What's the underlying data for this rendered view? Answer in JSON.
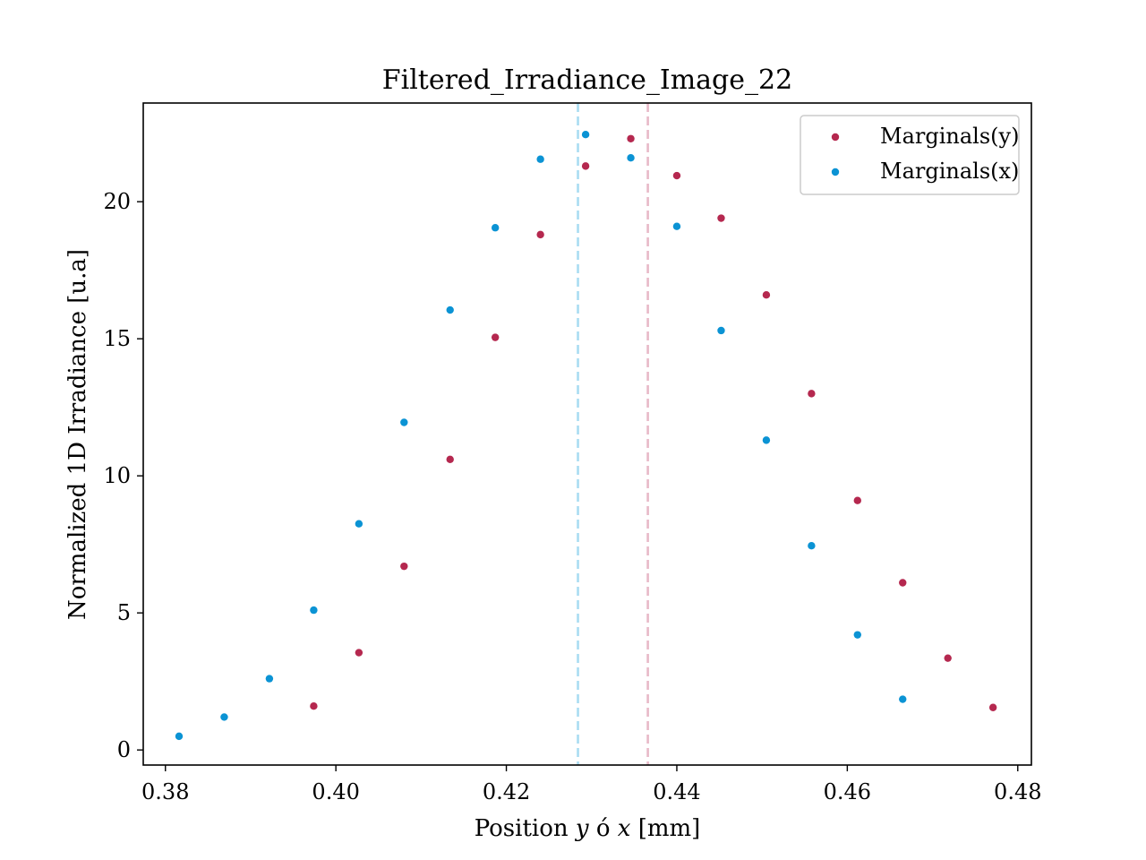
{
  "chart_data": {
    "type": "scatter",
    "title": "Filtered_Irradiance_Image_22",
    "xlabel_parts": [
      "Position ",
      "y",
      " ó ",
      "x",
      " [mm]"
    ],
    "ylabel": "Normalized 1D Irradiance [u.a]",
    "xlim": [
      0.3774,
      0.4816
    ],
    "ylim": [
      -0.55,
      23.6
    ],
    "xticks": [
      0.38,
      0.4,
      0.42,
      0.44,
      0.46,
      0.48
    ],
    "xtick_labels": [
      "0.38",
      "0.40",
      "0.42",
      "0.44",
      "0.46",
      "0.48"
    ],
    "yticks": [
      0,
      5,
      10,
      15,
      20
    ],
    "ytick_labels": [
      "0",
      "5",
      "10",
      "15",
      "20"
    ],
    "grid": false,
    "legend_position": "top-right",
    "series": [
      {
        "name": "Marginals(y)",
        "color": "#b5284f",
        "points": [
          [
            0.3974,
            1.6
          ],
          [
            0.4027,
            3.55
          ],
          [
            0.408,
            6.7
          ],
          [
            0.4134,
            10.6
          ],
          [
            0.4187,
            15.05
          ],
          [
            0.424,
            18.8
          ],
          [
            0.4293,
            21.3
          ],
          [
            0.4346,
            22.3
          ],
          [
            0.44,
            20.95
          ],
          [
            0.4452,
            19.4
          ],
          [
            0.4505,
            16.6
          ],
          [
            0.4558,
            13.0
          ],
          [
            0.4612,
            9.1
          ],
          [
            0.4665,
            6.1
          ],
          [
            0.4718,
            3.35
          ],
          [
            0.4771,
            1.55
          ]
        ],
        "mean_line_x": 0.4366,
        "mean_line_color": "#e8b9c8"
      },
      {
        "name": "Marginals(x)",
        "color": "#0b93d4",
        "points": [
          [
            0.3816,
            0.5
          ],
          [
            0.3869,
            1.2
          ],
          [
            0.3922,
            2.6
          ],
          [
            0.3974,
            5.1
          ],
          [
            0.4027,
            8.25
          ],
          [
            0.408,
            11.95
          ],
          [
            0.4134,
            16.05
          ],
          [
            0.4187,
            19.05
          ],
          [
            0.424,
            21.55
          ],
          [
            0.4293,
            22.45
          ],
          [
            0.4346,
            21.6
          ],
          [
            0.44,
            19.1
          ],
          [
            0.4452,
            15.3
          ],
          [
            0.4505,
            11.3
          ],
          [
            0.4558,
            7.45
          ],
          [
            0.4612,
            4.2
          ],
          [
            0.4665,
            1.85
          ]
        ],
        "mean_line_x": 0.4284,
        "mean_line_color": "#a9dcf2"
      }
    ]
  }
}
